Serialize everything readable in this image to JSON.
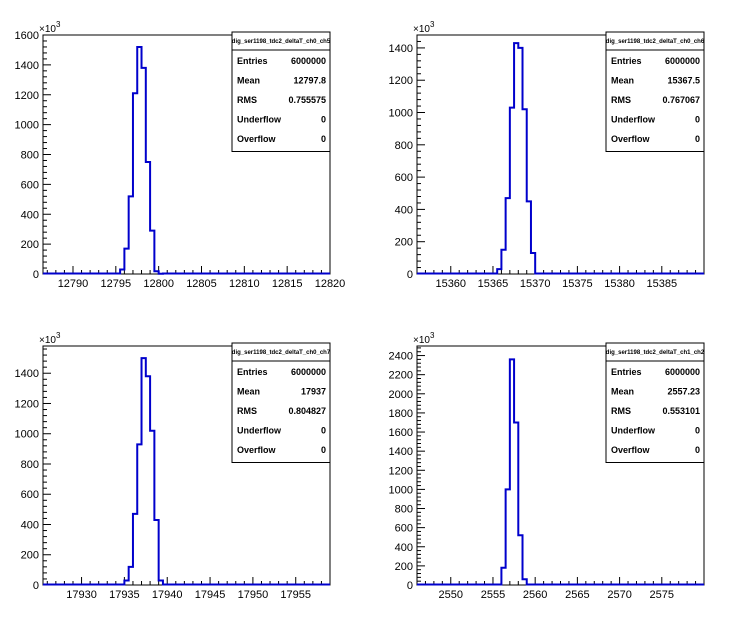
{
  "chart_data": [
    {
      "type": "histogram",
      "title": "",
      "multiplier_label": "×10",
      "multiplier_exp": "3",
      "xlim": [
        12786.5,
        12820
      ],
      "ylim": [
        0,
        1600
      ],
      "xticks": [
        12790,
        12795,
        12800,
        12805,
        12810,
        12815,
        12820
      ],
      "yticks": [
        0,
        200,
        400,
        600,
        800,
        1000,
        1200,
        1400,
        1600
      ],
      "ytick_labels": [
        "0",
        "200",
        "400",
        "600",
        "800",
        "1000",
        "1200",
        "1400",
        "1600"
      ],
      "bin_width": 0.5,
      "bins_x0": [
        12795,
        12795.5,
        12796,
        12796.5,
        12797,
        12797.5,
        12798,
        12798.5,
        12799,
        12799.5,
        12800
      ],
      "values": [
        3,
        30,
        170,
        520,
        1210,
        1520,
        1380,
        750,
        290,
        18,
        2
      ],
      "stats": {
        "name": "dig_ser1198_tdc2_deltaT_ch0_ch5",
        "rows": [
          {
            "label": "Entries",
            "value": "6000000"
          },
          {
            "label": "Mean",
            "value": "12797.8"
          },
          {
            "label": "RMS",
            "value": "0.755575"
          },
          {
            "label": "Underflow",
            "value": "0"
          },
          {
            "label": "Overflow",
            "value": "0"
          }
        ]
      }
    },
    {
      "type": "histogram",
      "title": "",
      "multiplier_label": "×10",
      "multiplier_exp": "3",
      "xlim": [
        15356,
        15390
      ],
      "ylim": [
        0,
        1480
      ],
      "xticks": [
        15360,
        15365,
        15370,
        15375,
        15380,
        15385
      ],
      "yticks": [
        0,
        200,
        400,
        600,
        800,
        1000,
        1200,
        1400
      ],
      "ytick_labels": [
        "0",
        "200",
        "400",
        "600",
        "800",
        "1000",
        "1200",
        "1400"
      ],
      "bin_width": 0.5,
      "bins_x0": [
        15365,
        15365.5,
        15366,
        15366.5,
        15367,
        15367.5,
        15368,
        15368.5,
        15369,
        15369.5
      ],
      "values": [
        3,
        30,
        150,
        470,
        1030,
        1430,
        1400,
        1020,
        450,
        130
      ],
      "stats": {
        "name": "dig_ser1198_tdc2_deltaT_ch0_ch6",
        "rows": [
          {
            "label": "Entries",
            "value": "6000000"
          },
          {
            "label": "Mean",
            "value": "15367.5"
          },
          {
            "label": "RMS",
            "value": "0.767067"
          },
          {
            "label": "Underflow",
            "value": "0"
          },
          {
            "label": "Overflow",
            "value": "0"
          }
        ]
      }
    },
    {
      "type": "histogram",
      "title": "",
      "multiplier_label": "×10",
      "multiplier_exp": "3",
      "xlim": [
        17925.5,
        17959
      ],
      "ylim": [
        0,
        1580
      ],
      "xticks": [
        17930,
        17935,
        17940,
        17945,
        17950,
        17955
      ],
      "yticks": [
        0,
        200,
        400,
        600,
        800,
        1000,
        1200,
        1400
      ],
      "ytick_labels": [
        "0",
        "200",
        "400",
        "600",
        "800",
        "1000",
        "1200",
        "1400"
      ],
      "bin_width": 0.5,
      "bins_x0": [
        17934.5,
        17935,
        17935.5,
        17936,
        17936.5,
        17937,
        17937.5,
        17938,
        17938.5,
        17939,
        17939.5
      ],
      "values": [
        3,
        30,
        120,
        470,
        930,
        1500,
        1380,
        1020,
        430,
        30,
        3
      ],
      "stats": {
        "name": "dig_ser1198_tdc2_deltaT_ch0_ch7",
        "rows": [
          {
            "label": "Entries",
            "value": "6000000"
          },
          {
            "label": "Mean",
            "value": "17937"
          },
          {
            "label": "RMS",
            "value": "0.804827"
          },
          {
            "label": "Underflow",
            "value": "0"
          },
          {
            "label": "Overflow",
            "value": "0"
          }
        ]
      }
    },
    {
      "type": "histogram",
      "title": "",
      "multiplier_label": "×10",
      "multiplier_exp": "3",
      "xlim": [
        2546,
        2580
      ],
      "ylim": [
        0,
        2500
      ],
      "xticks": [
        2550,
        2555,
        2560,
        2565,
        2570,
        2575
      ],
      "yticks": [
        0,
        200,
        400,
        600,
        800,
        1000,
        1200,
        1400,
        1600,
        1800,
        2000,
        2200,
        2400
      ],
      "ytick_labels": [
        "0",
        "200",
        "400",
        "600",
        "800",
        "1000",
        "1200",
        "1400",
        "1600",
        "1800",
        "2000",
        "2200",
        "2400"
      ],
      "bin_width": 0.5,
      "bins_x0": [
        2556,
        2556.5,
        2557,
        2557.5,
        2558,
        2558.5
      ],
      "values": [
        180,
        1000,
        2360,
        1700,
        520,
        60
      ],
      "stats": {
        "name": "dig_ser1198_tdc2_deltaT_ch1_ch2",
        "rows": [
          {
            "label": "Entries",
            "value": "6000000"
          },
          {
            "label": "Mean",
            "value": "2557.23"
          },
          {
            "label": "RMS",
            "value": "0.553101"
          },
          {
            "label": "Underflow",
            "value": "0"
          },
          {
            "label": "Overflow",
            "value": "0"
          }
        ]
      }
    }
  ]
}
